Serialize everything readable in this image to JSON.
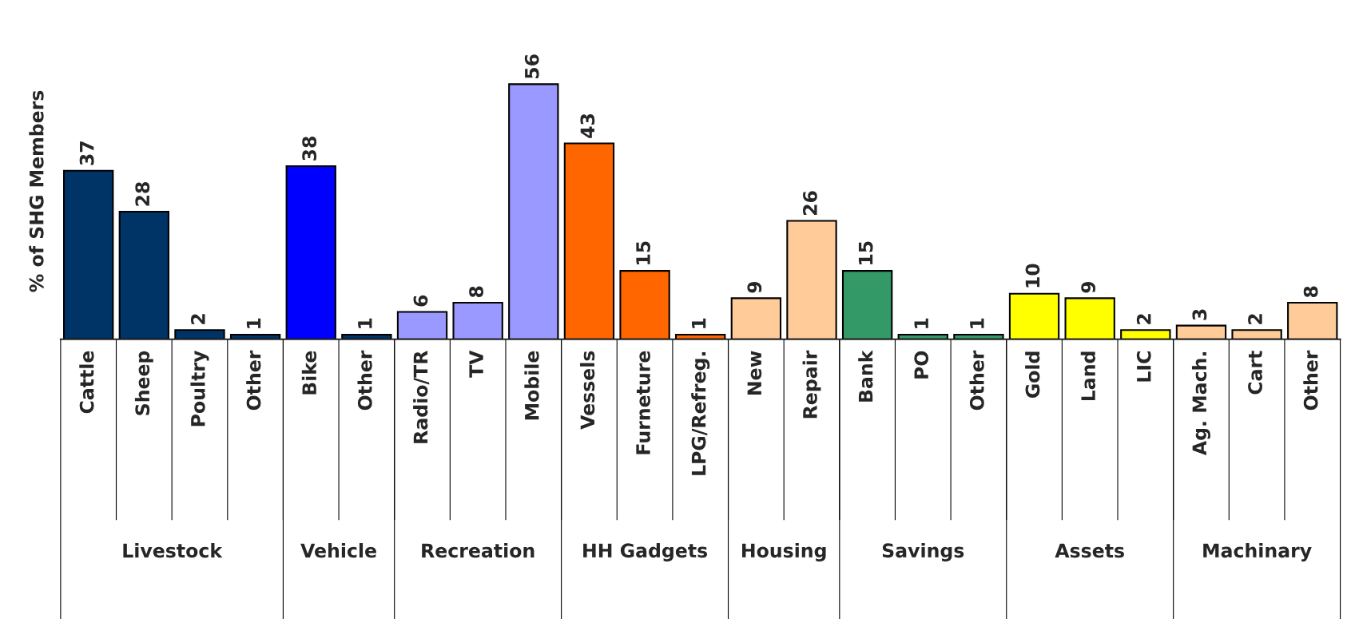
{
  "chart_data": {
    "type": "bar",
    "ylabel": "% of SHG Members",
    "categories": [
      "Cattle",
      "Sheep",
      "Poultry",
      "Other",
      "Bike",
      "Other",
      "Radio/TR",
      "TV",
      "Mobile",
      "Vessels",
      "Furneture",
      "LPG/Refreg.",
      "New",
      "Repair",
      "Bank",
      "PO",
      "Other",
      "Gold",
      "Land",
      "LIC",
      "Ag. Mach.",
      "Cart",
      "Other"
    ],
    "series": [
      {
        "name": "Livestock",
        "colors": [
          "#003366",
          "#003366",
          "#003366",
          "#003366",
          null,
          null,
          null,
          null,
          null,
          null,
          null,
          null,
          null,
          null,
          null,
          null,
          null,
          null,
          null,
          null,
          null,
          null,
          null
        ],
        "values": [
          37,
          28,
          2,
          1,
          null,
          null,
          null,
          null,
          null,
          null,
          null,
          null,
          null,
          null,
          null,
          null,
          null,
          null,
          null,
          null,
          null,
          null,
          null
        ]
      },
      {
        "name": "Vehicle",
        "colors": [
          null,
          null,
          null,
          null,
          "#0000ff",
          "#003366",
          null,
          null,
          null,
          null,
          null,
          null,
          null,
          null,
          null,
          null,
          null,
          null,
          null,
          null,
          null,
          null,
          null
        ],
        "values": [
          null,
          null,
          null,
          null,
          38,
          1,
          null,
          null,
          null,
          null,
          null,
          null,
          null,
          null,
          null,
          null,
          null,
          null,
          null,
          null,
          null,
          null,
          null
        ]
      },
      {
        "name": "Recreation",
        "colors": [
          null,
          null,
          null,
          null,
          null,
          null,
          "#9999ff",
          "#9999ff",
          "#9999ff",
          null,
          null,
          null,
          null,
          null,
          null,
          null,
          null,
          null,
          null,
          null,
          null,
          null,
          null
        ],
        "values": [
          null,
          null,
          null,
          null,
          null,
          null,
          6,
          8,
          56,
          null,
          null,
          null,
          null,
          null,
          null,
          null,
          null,
          null,
          null,
          null,
          null,
          null,
          null
        ]
      },
      {
        "name": "HH Gadgets",
        "colors": [
          null,
          null,
          null,
          null,
          null,
          null,
          null,
          null,
          null,
          "#ff6600",
          "#ff6600",
          "#ff6600",
          null,
          null,
          null,
          null,
          null,
          null,
          null,
          null,
          null,
          null,
          null
        ],
        "values": [
          null,
          null,
          null,
          null,
          null,
          null,
          null,
          null,
          null,
          43,
          15,
          1,
          null,
          null,
          null,
          null,
          null,
          null,
          null,
          null,
          null,
          null,
          null
        ]
      },
      {
        "name": "Housing",
        "colors": [
          null,
          null,
          null,
          null,
          null,
          null,
          null,
          null,
          null,
          null,
          null,
          null,
          "#ffcc99",
          "#ffcc99",
          null,
          null,
          null,
          null,
          null,
          null,
          null,
          null,
          null
        ],
        "values": [
          null,
          null,
          null,
          null,
          null,
          null,
          null,
          null,
          null,
          null,
          null,
          null,
          9,
          26,
          null,
          null,
          null,
          null,
          null,
          null,
          null,
          null,
          null
        ]
      },
      {
        "name": "Savings",
        "colors": [
          null,
          null,
          null,
          null,
          null,
          null,
          null,
          null,
          null,
          null,
          null,
          null,
          null,
          null,
          "#339966",
          "#339966",
          "#339966",
          null,
          null,
          null,
          null,
          null,
          null
        ],
        "values": [
          null,
          null,
          null,
          null,
          null,
          null,
          null,
          null,
          null,
          null,
          null,
          null,
          null,
          null,
          15,
          1,
          1,
          null,
          null,
          null,
          null,
          null,
          null
        ]
      },
      {
        "name": "Assets",
        "colors": [
          null,
          null,
          null,
          null,
          null,
          null,
          null,
          null,
          null,
          null,
          null,
          null,
          null,
          null,
          null,
          null,
          null,
          "#ffff00",
          "#ffff00",
          "#ffff00",
          null,
          null,
          null
        ],
        "values": [
          null,
          null,
          null,
          null,
          null,
          null,
          null,
          null,
          null,
          null,
          null,
          null,
          null,
          null,
          null,
          null,
          null,
          10,
          9,
          2,
          null,
          null,
          null
        ]
      },
      {
        "name": "Machinary",
        "colors": [
          null,
          null,
          null,
          null,
          null,
          null,
          null,
          null,
          null,
          null,
          null,
          null,
          null,
          null,
          null,
          null,
          null,
          null,
          null,
          null,
          "#ffcc99",
          "#ffcc99",
          "#ffcc99"
        ],
        "values": [
          null,
          null,
          null,
          null,
          null,
          null,
          null,
          null,
          null,
          null,
          null,
          null,
          null,
          null,
          null,
          null,
          null,
          null,
          null,
          null,
          3,
          2,
          8
        ]
      }
    ],
    "data_labels": true
  }
}
